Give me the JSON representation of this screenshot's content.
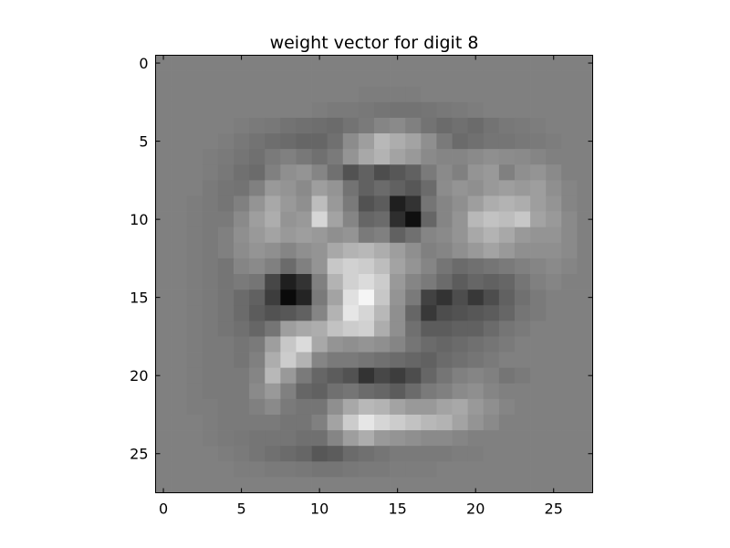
{
  "chart_data": {
    "type": "heatmap",
    "title": "weight vector for digit 8",
    "colormap": "gray",
    "rows": 28,
    "cols": 28,
    "xticks": [
      "0",
      "5",
      "10",
      "15",
      "20",
      "25"
    ],
    "yticks": [
      "0",
      "5",
      "10",
      "15",
      "20",
      "25"
    ],
    "xlim": [
      -0.5,
      27.5
    ],
    "ylim": [
      27.5,
      -0.5
    ],
    "background_value": 0.5,
    "values": [
      [
        0.5,
        0.5,
        0.5,
        0.5,
        0.5,
        0.5,
        0.5,
        0.5,
        0.5,
        0.5,
        0.5,
        0.5,
        0.5,
        0.5,
        0.5,
        0.5,
        0.5,
        0.5,
        0.5,
        0.5,
        0.5,
        0.5,
        0.5,
        0.5,
        0.5,
        0.5,
        0.5,
        0.5
      ],
      [
        0.5,
        0.5,
        0.5,
        0.5,
        0.5,
        0.5,
        0.5,
        0.5,
        0.5,
        0.5,
        0.5,
        0.5,
        0.5,
        0.5,
        0.5,
        0.5,
        0.5,
        0.5,
        0.5,
        0.5,
        0.5,
        0.5,
        0.5,
        0.5,
        0.5,
        0.5,
        0.5,
        0.5
      ],
      [
        0.5,
        0.5,
        0.5,
        0.5,
        0.5,
        0.5,
        0.5,
        0.5,
        0.5,
        0.5,
        0.5,
        0.5,
        0.5,
        0.49,
        0.49,
        0.49,
        0.49,
        0.5,
        0.5,
        0.5,
        0.5,
        0.5,
        0.5,
        0.5,
        0.5,
        0.5,
        0.5,
        0.5
      ],
      [
        0.5,
        0.5,
        0.5,
        0.5,
        0.5,
        0.5,
        0.5,
        0.5,
        0.5,
        0.5,
        0.49,
        0.48,
        0.48,
        0.47,
        0.46,
        0.45,
        0.45,
        0.46,
        0.47,
        0.48,
        0.49,
        0.5,
        0.5,
        0.5,
        0.5,
        0.5,
        0.5,
        0.5
      ],
      [
        0.5,
        0.5,
        0.5,
        0.5,
        0.5,
        0.49,
        0.48,
        0.47,
        0.45,
        0.44,
        0.43,
        0.42,
        0.45,
        0.48,
        0.52,
        0.54,
        0.5,
        0.45,
        0.42,
        0.44,
        0.42,
        0.45,
        0.47,
        0.48,
        0.49,
        0.5,
        0.5,
        0.5
      ],
      [
        0.5,
        0.5,
        0.5,
        0.5,
        0.49,
        0.47,
        0.45,
        0.43,
        0.42,
        0.4,
        0.4,
        0.44,
        0.55,
        0.62,
        0.72,
        0.68,
        0.64,
        0.56,
        0.48,
        0.42,
        0.44,
        0.46,
        0.46,
        0.47,
        0.48,
        0.49,
        0.5,
        0.5
      ],
      [
        0.5,
        0.5,
        0.5,
        0.49,
        0.48,
        0.46,
        0.44,
        0.48,
        0.5,
        0.47,
        0.44,
        0.48,
        0.58,
        0.66,
        0.7,
        0.64,
        0.6,
        0.54,
        0.52,
        0.52,
        0.54,
        0.56,
        0.55,
        0.54,
        0.52,
        0.5,
        0.5,
        0.5
      ],
      [
        0.5,
        0.5,
        0.5,
        0.49,
        0.47,
        0.44,
        0.42,
        0.5,
        0.56,
        0.58,
        0.52,
        0.44,
        0.32,
        0.38,
        0.3,
        0.34,
        0.38,
        0.48,
        0.54,
        0.5,
        0.58,
        0.6,
        0.5,
        0.56,
        0.58,
        0.54,
        0.5,
        0.5
      ],
      [
        0.5,
        0.5,
        0.5,
        0.48,
        0.46,
        0.45,
        0.5,
        0.6,
        0.58,
        0.54,
        0.62,
        0.58,
        0.45,
        0.38,
        0.42,
        0.38,
        0.34,
        0.42,
        0.55,
        0.58,
        0.56,
        0.6,
        0.62,
        0.6,
        0.62,
        0.56,
        0.52,
        0.5
      ],
      [
        0.5,
        0.5,
        0.49,
        0.48,
        0.46,
        0.5,
        0.58,
        0.66,
        0.6,
        0.56,
        0.74,
        0.6,
        0.48,
        0.32,
        0.36,
        0.12,
        0.2,
        0.46,
        0.52,
        0.56,
        0.62,
        0.68,
        0.7,
        0.68,
        0.62,
        0.58,
        0.52,
        0.5
      ],
      [
        0.5,
        0.5,
        0.49,
        0.48,
        0.48,
        0.54,
        0.62,
        0.68,
        0.58,
        0.6,
        0.84,
        0.64,
        0.52,
        0.4,
        0.42,
        0.18,
        0.06,
        0.4,
        0.52,
        0.58,
        0.72,
        0.76,
        0.74,
        0.78,
        0.64,
        0.6,
        0.54,
        0.5
      ],
      [
        0.5,
        0.5,
        0.49,
        0.48,
        0.5,
        0.56,
        0.6,
        0.64,
        0.6,
        0.62,
        0.6,
        0.56,
        0.58,
        0.48,
        0.5,
        0.38,
        0.44,
        0.52,
        0.54,
        0.58,
        0.66,
        0.7,
        0.66,
        0.6,
        0.58,
        0.58,
        0.54,
        0.5
      ],
      [
        0.5,
        0.5,
        0.49,
        0.48,
        0.5,
        0.55,
        0.58,
        0.56,
        0.52,
        0.56,
        0.58,
        0.66,
        0.7,
        0.72,
        0.68,
        0.62,
        0.56,
        0.5,
        0.52,
        0.56,
        0.6,
        0.64,
        0.6,
        0.56,
        0.56,
        0.56,
        0.54,
        0.5
      ],
      [
        0.5,
        0.5,
        0.49,
        0.48,
        0.46,
        0.52,
        0.54,
        0.5,
        0.42,
        0.5,
        0.58,
        0.78,
        0.82,
        0.8,
        0.74,
        0.64,
        0.58,
        0.52,
        0.46,
        0.42,
        0.44,
        0.46,
        0.48,
        0.5,
        0.52,
        0.54,
        0.52,
        0.5
      ],
      [
        0.5,
        0.5,
        0.49,
        0.48,
        0.46,
        0.48,
        0.46,
        0.28,
        0.12,
        0.2,
        0.5,
        0.7,
        0.82,
        0.86,
        0.8,
        0.6,
        0.52,
        0.48,
        0.42,
        0.36,
        0.4,
        0.38,
        0.4,
        0.46,
        0.5,
        0.52,
        0.5,
        0.5
      ],
      [
        0.5,
        0.5,
        0.49,
        0.48,
        0.46,
        0.42,
        0.38,
        0.24,
        0.04,
        0.14,
        0.48,
        0.64,
        0.88,
        0.96,
        0.78,
        0.58,
        0.48,
        0.26,
        0.2,
        0.3,
        0.22,
        0.3,
        0.38,
        0.44,
        0.48,
        0.5,
        0.5,
        0.5
      ],
      [
        0.5,
        0.5,
        0.49,
        0.48,
        0.46,
        0.42,
        0.36,
        0.32,
        0.34,
        0.38,
        0.52,
        0.7,
        0.9,
        0.84,
        0.72,
        0.56,
        0.4,
        0.22,
        0.3,
        0.32,
        0.34,
        0.36,
        0.4,
        0.46,
        0.48,
        0.5,
        0.5,
        0.5
      ],
      [
        0.5,
        0.5,
        0.49,
        0.48,
        0.46,
        0.44,
        0.4,
        0.46,
        0.62,
        0.66,
        0.68,
        0.76,
        0.8,
        0.82,
        0.68,
        0.56,
        0.44,
        0.36,
        0.36,
        0.38,
        0.38,
        0.42,
        0.46,
        0.48,
        0.5,
        0.5,
        0.5,
        0.5
      ],
      [
        0.5,
        0.5,
        0.49,
        0.48,
        0.48,
        0.46,
        0.48,
        0.62,
        0.78,
        0.86,
        0.66,
        0.58,
        0.56,
        0.58,
        0.56,
        0.52,
        0.46,
        0.42,
        0.4,
        0.42,
        0.44,
        0.46,
        0.48,
        0.5,
        0.5,
        0.5,
        0.5,
        0.5
      ],
      [
        0.5,
        0.5,
        0.49,
        0.48,
        0.48,
        0.46,
        0.5,
        0.68,
        0.8,
        0.7,
        0.52,
        0.48,
        0.48,
        0.46,
        0.44,
        0.42,
        0.4,
        0.38,
        0.42,
        0.44,
        0.46,
        0.48,
        0.5,
        0.5,
        0.5,
        0.5,
        0.5,
        0.5
      ],
      [
        0.5,
        0.5,
        0.49,
        0.48,
        0.48,
        0.48,
        0.52,
        0.72,
        0.6,
        0.48,
        0.4,
        0.36,
        0.32,
        0.2,
        0.28,
        0.24,
        0.3,
        0.4,
        0.46,
        0.5,
        0.52,
        0.5,
        0.46,
        0.48,
        0.5,
        0.5,
        0.5,
        0.5
      ],
      [
        0.5,
        0.5,
        0.49,
        0.48,
        0.48,
        0.48,
        0.54,
        0.6,
        0.5,
        0.4,
        0.38,
        0.44,
        0.46,
        0.42,
        0.4,
        0.36,
        0.42,
        0.48,
        0.5,
        0.54,
        0.56,
        0.52,
        0.5,
        0.5,
        0.5,
        0.5,
        0.5,
        0.5
      ],
      [
        0.5,
        0.5,
        0.49,
        0.49,
        0.48,
        0.48,
        0.5,
        0.54,
        0.48,
        0.46,
        0.46,
        0.56,
        0.66,
        0.72,
        0.7,
        0.64,
        0.6,
        0.6,
        0.64,
        0.66,
        0.6,
        0.56,
        0.52,
        0.5,
        0.5,
        0.5,
        0.5,
        0.5
      ],
      [
        0.5,
        0.5,
        0.5,
        0.49,
        0.48,
        0.48,
        0.48,
        0.48,
        0.46,
        0.46,
        0.5,
        0.64,
        0.8,
        0.9,
        0.84,
        0.8,
        0.76,
        0.72,
        0.7,
        0.64,
        0.58,
        0.54,
        0.5,
        0.5,
        0.5,
        0.5,
        0.5,
        0.5
      ],
      [
        0.5,
        0.5,
        0.5,
        0.49,
        0.48,
        0.47,
        0.46,
        0.46,
        0.46,
        0.44,
        0.44,
        0.52,
        0.62,
        0.68,
        0.6,
        0.58,
        0.56,
        0.54,
        0.54,
        0.52,
        0.5,
        0.5,
        0.5,
        0.5,
        0.5,
        0.5,
        0.5,
        0.5
      ],
      [
        0.5,
        0.5,
        0.5,
        0.5,
        0.49,
        0.48,
        0.46,
        0.44,
        0.42,
        0.4,
        0.34,
        0.36,
        0.42,
        0.44,
        0.46,
        0.48,
        0.48,
        0.48,
        0.48,
        0.49,
        0.49,
        0.5,
        0.5,
        0.5,
        0.5,
        0.5,
        0.5,
        0.5
      ],
      [
        0.5,
        0.5,
        0.5,
        0.5,
        0.5,
        0.49,
        0.49,
        0.48,
        0.48,
        0.47,
        0.46,
        0.46,
        0.47,
        0.48,
        0.48,
        0.49,
        0.49,
        0.49,
        0.5,
        0.5,
        0.5,
        0.5,
        0.5,
        0.5,
        0.5,
        0.5,
        0.5,
        0.5
      ],
      [
        0.5,
        0.5,
        0.5,
        0.5,
        0.5,
        0.5,
        0.5,
        0.5,
        0.5,
        0.5,
        0.5,
        0.5,
        0.5,
        0.5,
        0.5,
        0.5,
        0.5,
        0.5,
        0.5,
        0.5,
        0.5,
        0.5,
        0.5,
        0.5,
        0.5,
        0.5,
        0.5,
        0.5
      ]
    ]
  }
}
